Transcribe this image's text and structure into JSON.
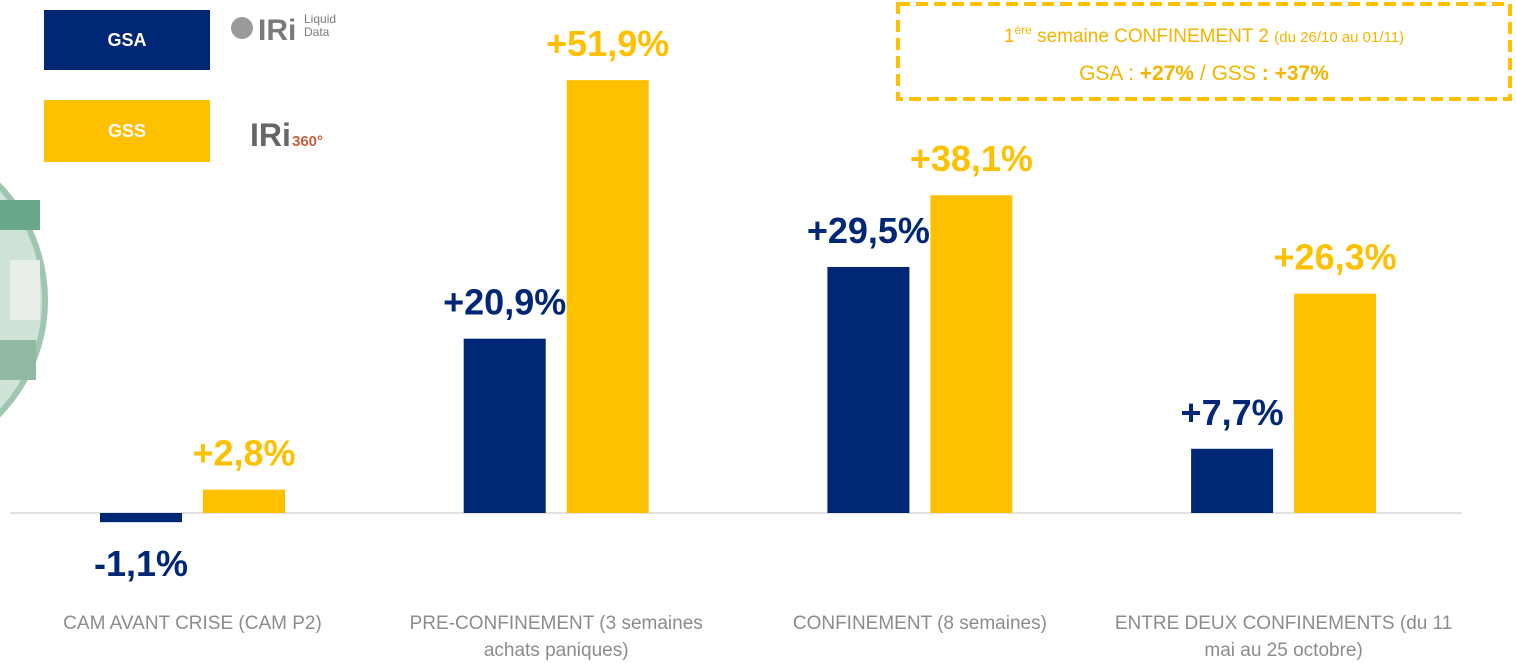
{
  "chart_data": {
    "type": "bar",
    "categories": [
      "CAM AVANT CRISE (CAM P2)",
      "PRE-CONFINEMENT (3 semaines achats paniques)",
      "CONFINEMENT (8 semaines)",
      "ENTRE DEUX CONFINEMENTS (du 11 mai au 25 octobre)"
    ],
    "series": [
      {
        "name": "GSA",
        "color": "#002776",
        "values": [
          -1.1,
          20.9,
          29.5,
          7.7
        ],
        "value_labels": [
          "-1,1%",
          "+20,9%",
          "+29,5%",
          "+7,7%"
        ]
      },
      {
        "name": "GSS",
        "color": "#ffc000",
        "values": [
          2.8,
          51.9,
          38.1,
          26.3
        ],
        "value_labels": [
          "+2,8%",
          "+51,9%",
          "+38,1%",
          "+26,3%"
        ]
      }
    ],
    "logos": [
      {
        "brand": "IRi",
        "product": [
          "Liquid",
          "Data"
        ]
      },
      {
        "brand": "IRi",
        "product": [
          "360°"
        ]
      }
    ],
    "annotation": {
      "line1": [
        "1",
        "ère",
        " semaine CONFINEMENT 2 ",
        "(du 26/10 au 01/11)"
      ],
      "line2": [
        "GSA : ",
        "+27%",
        " / GSS ",
        ": +37%"
      ]
    }
  }
}
